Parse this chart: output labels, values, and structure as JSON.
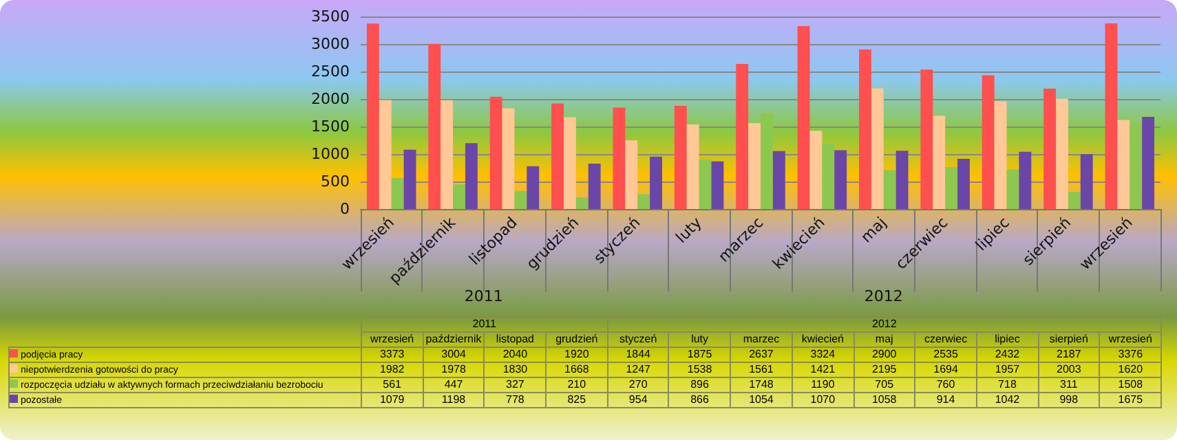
{
  "chart_data": {
    "type": "bar",
    "categories": [
      "wrzesień",
      "październik",
      "listopad",
      "grudzień",
      "styczeń",
      "luty",
      "marzec",
      "kwiecień",
      "maj",
      "czerwiec",
      "lipiec",
      "sierpień",
      "wrzesień"
    ],
    "series": [
      {
        "name": "podjęcia pracy",
        "color": "#ff4f4f",
        "values": [
          3373,
          3004,
          2040,
          1920,
          1844,
          1875,
          2637,
          3324,
          2900,
          2535,
          2432,
          2187,
          3376
        ]
      },
      {
        "name": "niepotwierdzenia gotowości do pracy",
        "color": "#ffc896",
        "values": [
          1982,
          1978,
          1830,
          1668,
          1247,
          1538,
          1561,
          1421,
          2195,
          1694,
          1957,
          2003,
          1620
        ]
      },
      {
        "name": "rozpoczęcia udziału w aktywnych formach przeciwdziałaniu bezrobociu",
        "color": "#8cc850",
        "values": [
          561,
          447,
          327,
          210,
          270,
          896,
          1748,
          1190,
          705,
          760,
          718,
          311,
          1508
        ]
      },
      {
        "name": "pozostałe",
        "color": "#6a46a8",
        "values": [
          1079,
          1198,
          778,
          825,
          954,
          866,
          1054,
          1070,
          1058,
          914,
          1042,
          998,
          1675
        ]
      }
    ],
    "annotations": [
      "2011",
      "2012"
    ],
    "ylim": [
      0,
      3500
    ],
    "yticks": [
      0,
      500,
      1000,
      1500,
      2000,
      2500,
      3000,
      3500
    ],
    "grid": true,
    "legend": "bottom",
    "data_labels": true
  }
}
